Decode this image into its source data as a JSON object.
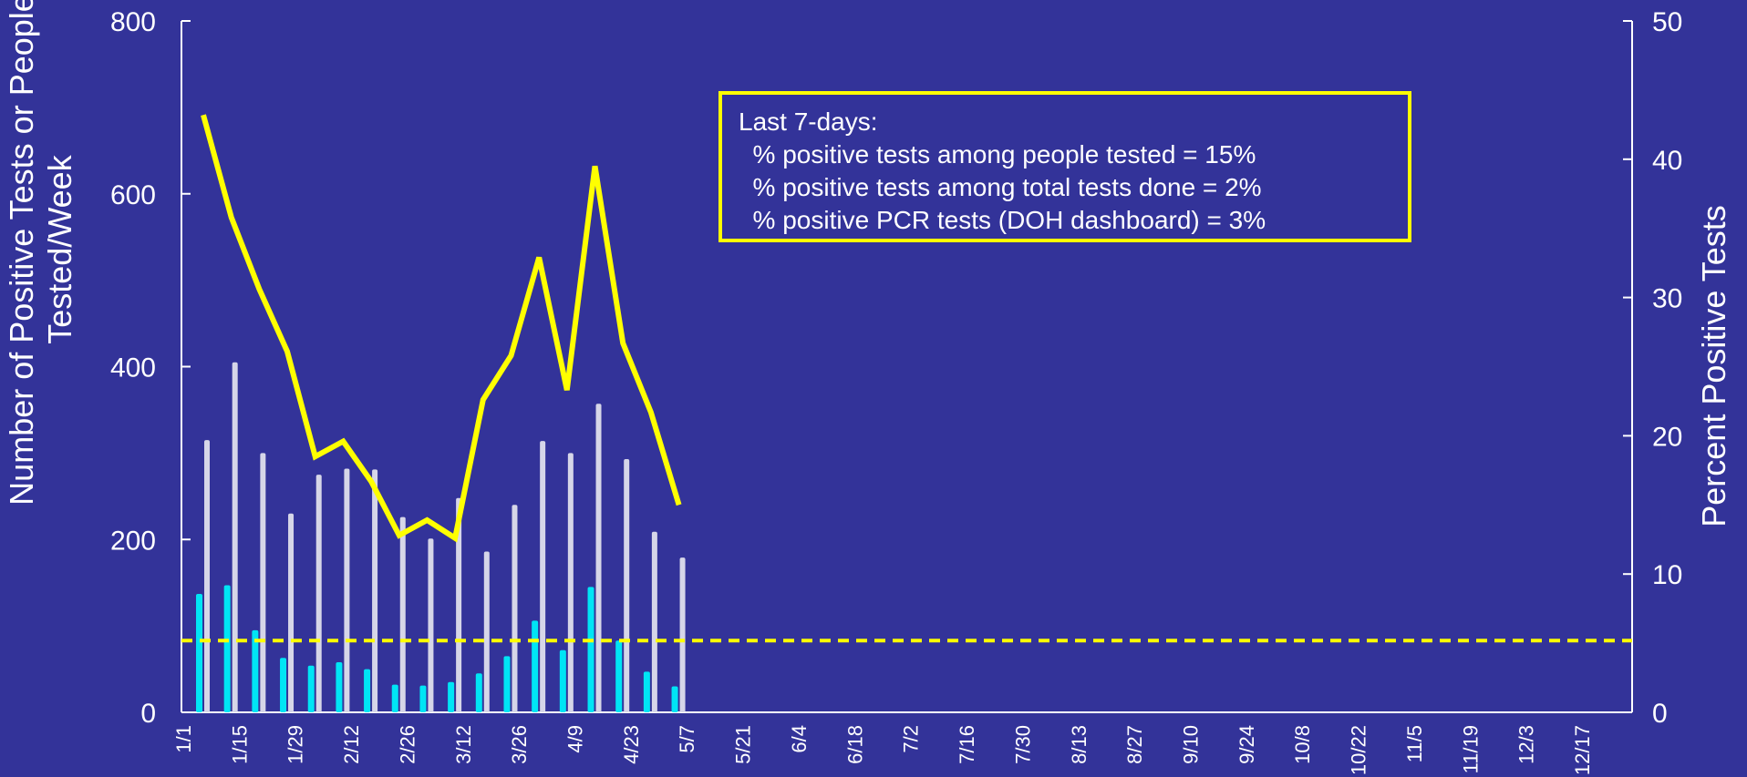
{
  "chart_data": {
    "type": "bar",
    "ylabel_left": "Number of Positive Tests or People Tested/Week",
    "ylabel_right": "Percent Positive Tests",
    "ylim_left": [
      0,
      800
    ],
    "ylim_right": [
      0,
      50
    ],
    "yticks_left": [
      "0",
      "200",
      "400",
      "600",
      "800"
    ],
    "yticks_right": [
      "0",
      "10",
      "20",
      "30",
      "40",
      "50"
    ],
    "x_tick_labels": [
      "1/1",
      "1/15",
      "1/29",
      "2/12",
      "2/26",
      "3/12",
      "3/26",
      "4/9",
      "4/23",
      "5/7",
      "5/21",
      "6/4",
      "6/18",
      "7/2",
      "7/16",
      "7/30",
      "8/13",
      "8/27",
      "9/10",
      "9/24",
      "10/8",
      "10/22",
      "11/5",
      "11/19",
      "12/3",
      "12/17"
    ],
    "legend": "none",
    "grid": false,
    "series": [
      {
        "kind": "bar",
        "axis": "left",
        "color": "#00e5f5",
        "values": [
          137,
          147,
          95,
          63,
          54,
          58,
          50,
          32,
          31,
          35,
          45,
          65,
          106,
          72,
          145,
          83,
          47,
          30
        ]
      },
      {
        "kind": "bar",
        "axis": "left",
        "color": "#d6d6e8",
        "values": [
          315,
          405,
          300,
          230,
          275,
          282,
          281,
          226,
          201,
          248,
          186,
          240,
          314,
          300,
          357,
          293,
          209,
          179
        ]
      },
      {
        "kind": "line",
        "axis": "right",
        "color": "#ffff00",
        "values": [
          43.2,
          35.8,
          30.6,
          26.1,
          18.5,
          19.6,
          16.7,
          12.8,
          13.9,
          12.6,
          22.6,
          25.8,
          32.9,
          23.3,
          39.5,
          26.7,
          21.7,
          15.0
        ]
      }
    ],
    "reference_line": {
      "axis": "left",
      "value": 83,
      "color": "#ffff00",
      "style": "dashed"
    },
    "annotation": {
      "lines": [
        "Last 7-days:",
        "  % positive tests among people tested = 15%",
        "  % positive tests among total tests done = 2%",
        "  % positive PCR tests (DOH dashboard) = 3%"
      ]
    }
  }
}
